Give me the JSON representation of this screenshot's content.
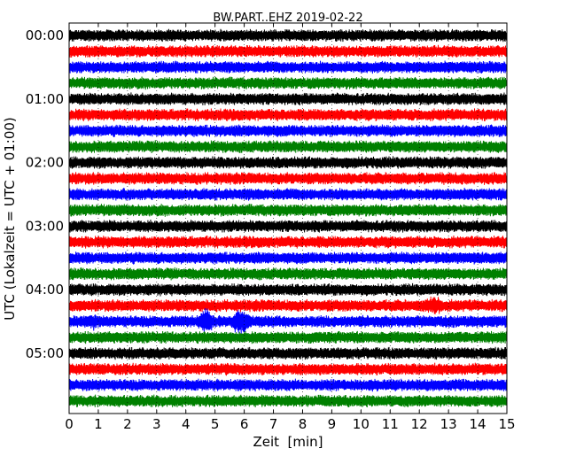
{
  "chart_data": {
    "type": "line",
    "title": "BW.PART..EHZ 2019-02-22",
    "xlabel": "Zeit  [min]",
    "ylabel": "UTC (Lokalzeit = UTC + 01:00)",
    "xlim": [
      0,
      15
    ],
    "x_ticks": [
      "0",
      "1",
      "2",
      "3",
      "4",
      "5",
      "6",
      "7",
      "8",
      "9",
      "10",
      "11",
      "12",
      "13",
      "14",
      "15"
    ],
    "y_ticks": [
      "00:00",
      "01:00",
      "02:00",
      "03:00",
      "04:00",
      "05:00"
    ],
    "trace_interval_min": 15,
    "trace_count": 24,
    "colors": [
      "#000000",
      "#ff0000",
      "#0000ff",
      "#008000"
    ],
    "events": [
      {
        "trace": 18,
        "start_min": 0.6,
        "end_min": 1.0,
        "amplitude": 1.6
      },
      {
        "trace": 18,
        "start_min": 4.4,
        "end_min": 5.0,
        "amplitude": 2.3
      },
      {
        "trace": 18,
        "start_min": 5.5,
        "end_min": 6.3,
        "amplitude": 2.2
      },
      {
        "trace": 17,
        "start_min": 12.1,
        "end_min": 12.9,
        "amplitude": 1.6
      }
    ]
  }
}
